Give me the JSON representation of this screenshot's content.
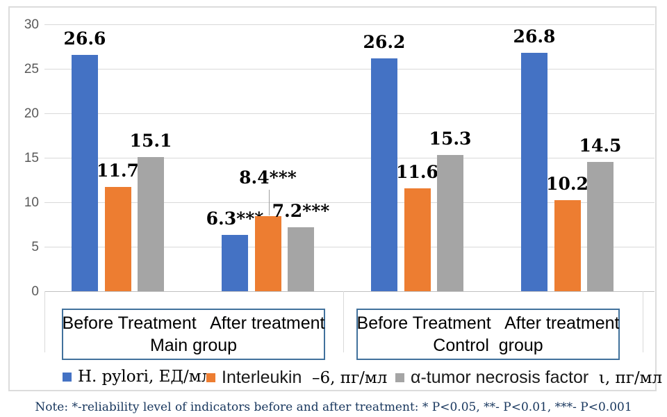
{
  "chart_data": {
    "type": "bar",
    "title": "",
    "xlabel": "",
    "ylabel": "",
    "ylim": [
      0,
      30
    ],
    "yticks": [
      "0",
      "5",
      "10",
      "15",
      "20",
      "25",
      "30"
    ],
    "ytick_values": [
      0,
      5,
      10,
      15,
      20,
      25,
      30
    ],
    "grid": "horizontal",
    "legend_position": "bottom",
    "categories": [
      "Before Treatment (Main group)",
      "After treatment (Main group)",
      "Before Treatment (Control group)",
      "After treatment (Control group)"
    ],
    "series": [
      {
        "name": "H. pylori, ЕД/мл",
        "color": "#4472c4",
        "values": [
          26.6,
          6.3,
          26.2,
          26.8
        ]
      },
      {
        "name": "Interleukin –6, пг/мл",
        "color": "#ed7d31",
        "values": [
          11.7,
          8.4,
          11.6,
          10.2
        ]
      },
      {
        "name": "α-tumor necrosis factor, пг/мл",
        "color": "#a5a5a5",
        "values": [
          15.1,
          7.2,
          15.3,
          14.5
        ]
      }
    ],
    "data_labels": [
      [
        "26.6",
        "11.7",
        "15.1"
      ],
      [
        "6.3***",
        "8.4***",
        "7.2***"
      ],
      [
        "26.2",
        "11.6",
        "15.3"
      ],
      [
        "26.8",
        "10.2",
        "14.5"
      ]
    ]
  },
  "category_axis": {
    "main_box": {
      "line1": "Before Treatment   After treatment",
      "line2": "Main group"
    },
    "control_box": {
      "line1": "Before Treatment   After treatment",
      "line2": "Control  group"
    }
  },
  "legend": {
    "items": [
      {
        "marker_color": "#4472c4",
        "marker_name": "blue-square-marker",
        "parts": [
          {
            "text": "H. pylori, ЕД/мл",
            "style": "serif"
          }
        ]
      },
      {
        "marker_color": "#ed7d31",
        "marker_name": "orange-square-marker",
        "parts": [
          {
            "text": "Interleukin",
            "style": "sans"
          },
          {
            "text": "  –6, пг/мл",
            "style": "serif"
          }
        ]
      },
      {
        "marker_color": "#a5a5a5",
        "marker_name": "gray-square-marker",
        "parts": [
          {
            "text": "α-tumor necrosis factor",
            "style": "sans"
          },
          {
            "text": "  ι, пг/мл",
            "style": "serif"
          }
        ]
      }
    ]
  },
  "note": "Note: *-reliability level of indicators before and after treatment: * P<0.05, **- P<0.01, ***- P<0.001",
  "colors": {
    "series_blue": "#4472c4",
    "series_orange": "#ed7d31",
    "series_gray": "#a5a5a5",
    "gridline": "#d9d9d9",
    "axis_line": "#c0c0c0",
    "tick_label": "#595959",
    "category_box_border": "#41719c",
    "chart_frame_border": "#dcdcdc",
    "note_text": "#17365d"
  }
}
